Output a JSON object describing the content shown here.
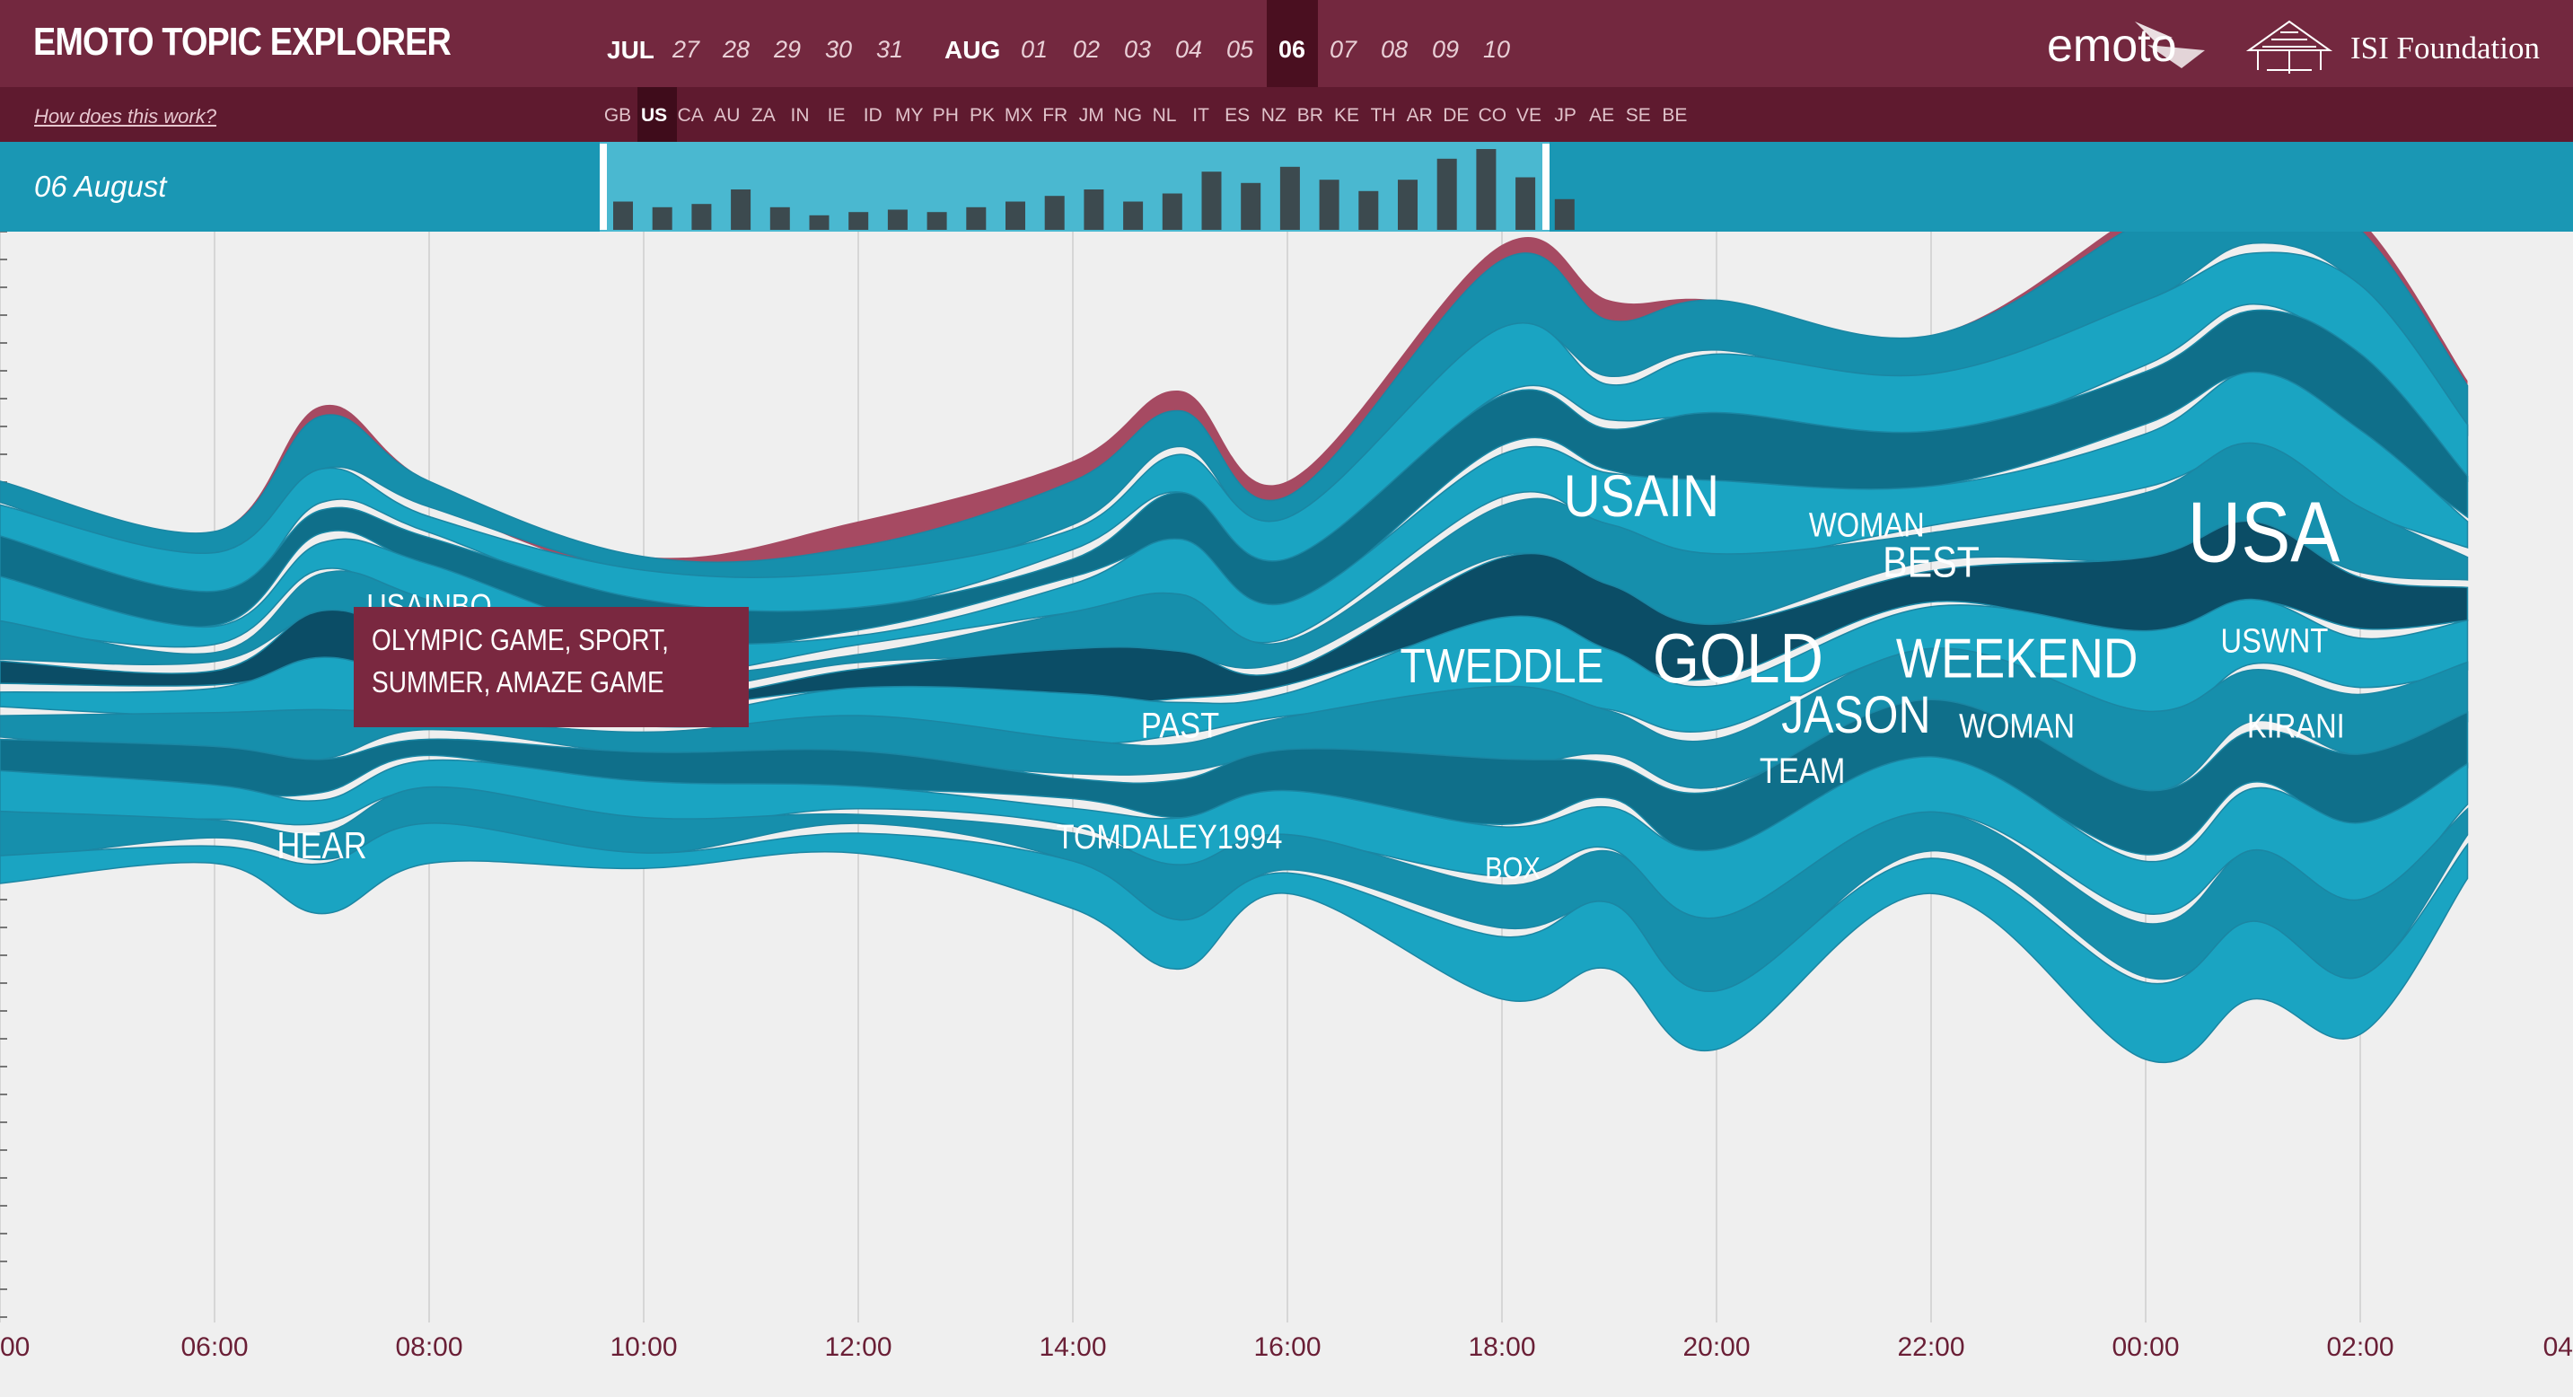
{
  "header": {
    "title": "EMOTO TOPIC EXPLORER",
    "help_link": "How does this work?",
    "months": [
      "JUL",
      "AUG"
    ],
    "jul_days": [
      "27",
      "28",
      "29",
      "30",
      "31"
    ],
    "aug_days": [
      "01",
      "02",
      "03",
      "04",
      "05",
      "06",
      "07",
      "08",
      "09",
      "10"
    ],
    "selected_day": "06",
    "countries": [
      "GB",
      "US",
      "CA",
      "AU",
      "ZA",
      "IN",
      "IE",
      "ID",
      "MY",
      "PH",
      "PK",
      "MX",
      "FR",
      "JM",
      "NG",
      "NL",
      "IT",
      "ES",
      "NZ",
      "BR",
      "KE",
      "TH",
      "AR",
      "DE",
      "CO",
      "VE",
      "JP",
      "AE",
      "SE",
      "BE"
    ],
    "selected_country": "US",
    "logo_emoto": "emoto",
    "logo_isi": "ISI Foundation"
  },
  "timeline": {
    "date_label": "06 August",
    "bar_values": [
      0.35,
      0.28,
      0.32,
      0.5,
      0.28,
      0.18,
      0.22,
      0.25,
      0.22,
      0.28,
      0.35,
      0.42,
      0.5,
      0.35,
      0.45,
      0.72,
      0.58,
      0.78,
      0.62,
      0.48,
      0.62,
      0.88,
      1.0,
      0.65,
      0.38
    ]
  },
  "chart_data": {
    "type": "area",
    "title": "",
    "xlabel": "",
    "ylabel": "",
    "x_tick_labels": [
      "00",
      "06:00",
      "08:00",
      "10:00",
      "12:00",
      "14:00",
      "16:00",
      "18:00",
      "20:00",
      "22:00",
      "00:00",
      "02:00",
      "04"
    ],
    "x_ticks_hours": [
      4,
      6,
      8,
      10,
      12,
      14,
      16,
      18,
      20,
      22,
      24,
      26,
      28
    ],
    "x_range_hours": [
      4,
      28
    ],
    "series_hours": [
      4,
      6,
      7,
      8,
      10,
      12,
      14,
      15,
      16,
      18,
      19,
      20,
      22,
      24,
      25,
      26,
      27
    ],
    "stream_total_upper": [
      0.4,
      0.3,
      0.53,
      0.4,
      0.25,
      0.27,
      0.4,
      0.54,
      0.37,
      0.84,
      0.72,
      0.76,
      0.69,
      0.92,
      1.0,
      0.9,
      0.59
    ],
    "stream_total_lower": [
      -0.4,
      -0.36,
      -0.46,
      -0.36,
      -0.37,
      -0.34,
      -0.45,
      -0.57,
      -0.42,
      -0.63,
      -0.57,
      -0.73,
      -0.42,
      -0.75,
      -0.63,
      -0.7,
      -0.39
    ],
    "stream_red_upper": [
      0.4,
      0.3,
      0.55,
      0.4,
      0.25,
      0.32,
      0.44,
      0.58,
      0.4,
      0.87,
      0.76,
      0.76,
      0.69,
      0.94,
      1.02,
      0.92,
      0.6
    ],
    "topics": [
      "USAINBO",
      "HEAR",
      "PAST",
      "TOMDALEY1994",
      "TWEDDLE",
      "BOX",
      "USAIN",
      "GOLD",
      "JASON",
      "TEAM",
      "WOMAN",
      "BEST",
      "WEEKEND",
      "WOMAN",
      "USA",
      "USWNT",
      "KIRANI"
    ],
    "tooltip": {
      "line1": "OLYMPIC GAME, SPORT,",
      "line2": "SUMMER, AMAZE GAME"
    },
    "colors": {
      "teal_light": "#1aa4c2",
      "teal_mid": "#168fac",
      "teal_dark": "#0f6f8a",
      "teal_deep": "#0b4d66",
      "red": "#a64a62"
    }
  }
}
